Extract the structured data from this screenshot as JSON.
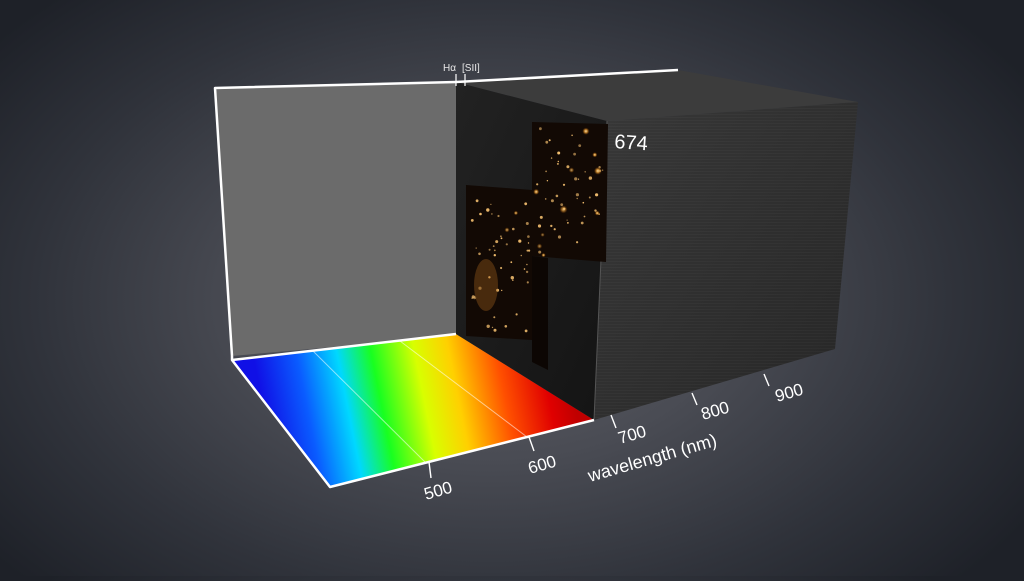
{
  "axis": {
    "label": "wavelength (nm)",
    "ticks": [
      {
        "value": 500,
        "label": "500"
      },
      {
        "value": 600,
        "label": "600"
      },
      {
        "value": 700,
        "label": "700"
      },
      {
        "value": 800,
        "label": "800"
      },
      {
        "value": 900,
        "label": "900"
      }
    ]
  },
  "emission_lines": [
    {
      "label": "Hα"
    },
    {
      "label": "[SII]"
    }
  ],
  "current_slice": {
    "value": 674,
    "label": "674"
  },
  "colors": {
    "frame": "#ffffff",
    "back_panel": "#6b6b6b",
    "cube": "#2a2a2a",
    "spectrum": [
      "#1a1aff",
      "#0080ff",
      "#00ffff",
      "#00ff00",
      "#ffff00",
      "#ff9900",
      "#ff0000"
    ]
  }
}
